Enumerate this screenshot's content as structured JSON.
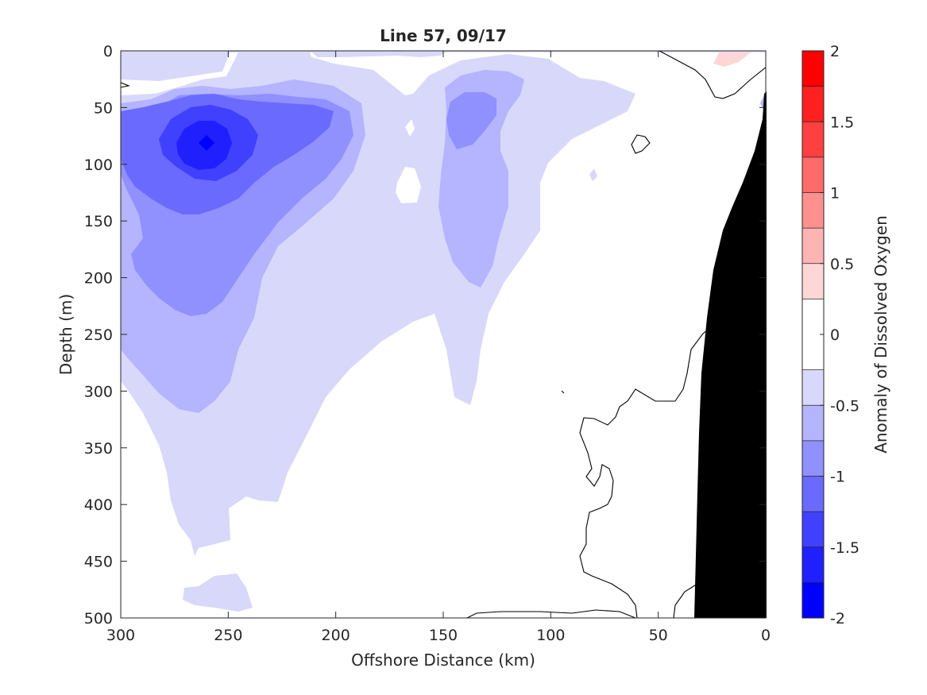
{
  "chart_data": {
    "type": "contour",
    "title": "Line 57, 09/17",
    "xlabel": "Offshore Distance (km)",
    "ylabel": "Depth (m)",
    "colorbar_label": "Anomaly of Dissolved Oxygen",
    "xlim": [
      300,
      0
    ],
    "ylim": [
      500,
      0
    ],
    "x_reversed": true,
    "y_reversed": true,
    "x_ticks": [
      "300",
      "250",
      "200",
      "150",
      "100",
      "50",
      "0"
    ],
    "y_ticks": [
      "0",
      "50",
      "100",
      "150",
      "200",
      "250",
      "300",
      "350",
      "400",
      "450",
      "500"
    ],
    "colorbar_ticks": [
      "2",
      "1.5",
      "1",
      "0.5",
      "0",
      "-0.5",
      "-1",
      "-1.5",
      "-2"
    ],
    "colorbar_range": [
      -2,
      2
    ],
    "contour_levels": [
      -2,
      -1.75,
      -1.5,
      -1.25,
      -1,
      -0.75,
      -0.5,
      -0.25,
      0.25,
      0.5,
      0.75,
      1,
      1.25,
      1.5,
      1.75,
      2
    ],
    "level_colors": [
      "#0000ff",
      "#2020ff",
      "#4040ff",
      "#6a6aff",
      "#9090ff",
      "#b4b4ff",
      "#d8d8fa",
      "#ffffff",
      "#ffd6d6",
      "#ffb4b4",
      "#ff9090",
      "#ff6a6a",
      "#ff4040",
      "#ff2020",
      "#ff0000"
    ],
    "features": {
      "oxygen_minimum_core": {
        "x_km": 260,
        "depth_m": 80,
        "anomaly": -1.75
      },
      "secondary_low": {
        "x_km": 130,
        "depth_m": 70,
        "anomaly": -0.75
      },
      "positive_anomaly": {
        "x_km": 20,
        "depth_m": 5,
        "anomaly": 0.25
      },
      "zero_contour_nearshore": true,
      "bathymetry_fill": "#000000"
    },
    "grid": false
  },
  "colors": {
    "axis": "#262626",
    "land": "#000000",
    "background": "#ffffff"
  }
}
